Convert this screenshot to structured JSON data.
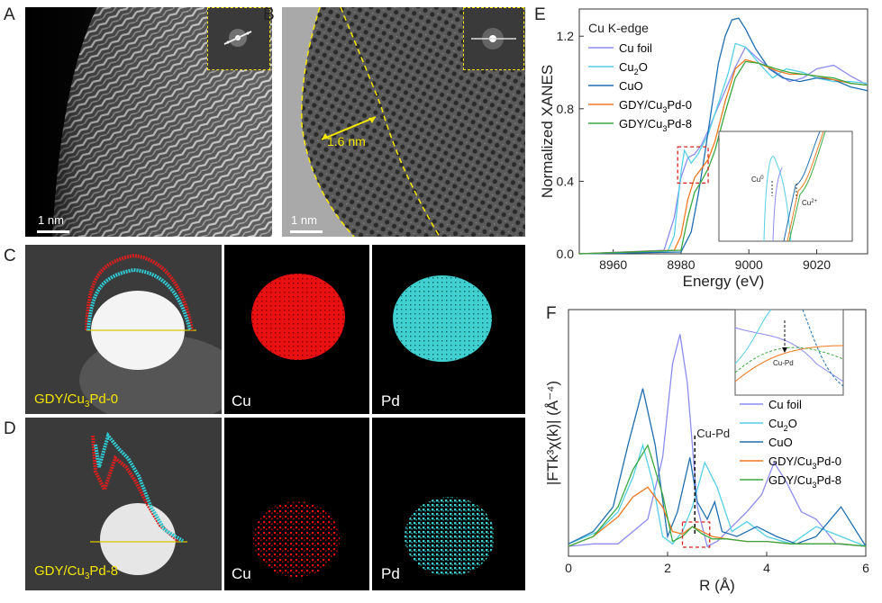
{
  "panels": {
    "A": {
      "letter": "A",
      "scale": "1 nm"
    },
    "B": {
      "letter": "B",
      "scale": "1 nm",
      "width_label": "1.6 nm"
    },
    "C": {
      "letter": "C",
      "sample": "GDY/Cu",
      "sub": "3",
      "suffix": "Pd-0",
      "cu": "Cu",
      "pd": "Pd"
    },
    "D": {
      "letter": "D",
      "sample": "GDY/Cu",
      "sub": "3",
      "suffix": "Pd-8",
      "cu": "Cu",
      "pd": "Pd"
    },
    "E": {
      "letter": "E"
    },
    "F": {
      "letter": "F"
    }
  },
  "chart_data": [
    {
      "type": "line",
      "panel": "E",
      "title": "Cu K-edge",
      "xlabel": "Energy (eV)",
      "ylabel": "Normalized XANES",
      "xlim": [
        8950,
        9035
      ],
      "ylim": [
        0,
        1.35
      ],
      "xticks": [
        "8960",
        "8980",
        "9000",
        "9020"
      ],
      "yticks": [
        "0.0",
        "0.4",
        "0.8",
        "1.2"
      ],
      "series": [
        {
          "name": "Cu foil",
          "color": "#8c8cf0",
          "x": [
            8950,
            8975,
            8978,
            8980,
            8982,
            8984,
            8986,
            8988,
            8990,
            8993,
            8996,
            8999,
            9003,
            9008,
            9012,
            9016,
            9020,
            9025,
            9030,
            9035
          ],
          "y": [
            0,
            0.02,
            0.2,
            0.42,
            0.53,
            0.55,
            0.6,
            0.68,
            0.77,
            0.9,
            1.03,
            1.14,
            1.07,
            1.0,
            0.95,
            0.97,
            1.02,
            1.04,
            0.98,
            0.93
          ]
        },
        {
          "name": "Cu2O",
          "color": "#55d0e6",
          "x": [
            8950,
            8976,
            8978,
            8980,
            8981,
            8983,
            8985,
            8988,
            8991,
            8994,
            8996,
            8999,
            9003,
            9007,
            9011,
            9016,
            9020,
            9025,
            9030,
            9035
          ],
          "y": [
            0,
            0.01,
            0.1,
            0.45,
            0.57,
            0.5,
            0.55,
            0.66,
            0.83,
            1.0,
            1.16,
            1.14,
            1.05,
            0.97,
            1.02,
            1.0,
            0.97,
            0.95,
            0.95,
            0.94
          ]
        },
        {
          "name": "CuO",
          "color": "#1f6fb0",
          "x": [
            8950,
            8980,
            8983,
            8985,
            8987,
            8989,
            8991,
            8993,
            8995,
            8997,
            8999,
            9002,
            9006,
            9010,
            9015,
            9020,
            9025,
            9030,
            9035
          ],
          "y": [
            0,
            0.01,
            0.12,
            0.32,
            0.55,
            0.8,
            1.05,
            1.2,
            1.29,
            1.3,
            1.24,
            1.13,
            1.02,
            0.97,
            0.95,
            0.97,
            0.96,
            0.92,
            0.9
          ]
        },
        {
          "name": "GDY/Cu3Pd-0",
          "color": "#f07820",
          "x": [
            8950,
            8978,
            8980,
            8982,
            8984,
            8986,
            8988,
            8990,
            8993,
            8996,
            8999,
            9003,
            9008,
            9012,
            9016,
            9020,
            9025,
            9030,
            9035
          ],
          "y": [
            0,
            0.02,
            0.1,
            0.3,
            0.42,
            0.47,
            0.52,
            0.62,
            0.84,
            1.02,
            1.07,
            1.05,
            1.01,
            0.99,
            0.99,
            0.98,
            0.96,
            0.94,
            0.93
          ]
        },
        {
          "name": "GDY/Cu3Pd-8",
          "color": "#3aa840",
          "x": [
            8950,
            8980,
            8982,
            8984,
            8986,
            8988,
            8990,
            8993,
            8996,
            8999,
            9003,
            9008,
            9012,
            9016,
            9020,
            9025,
            9030,
            9035
          ],
          "y": [
            0,
            0.02,
            0.2,
            0.34,
            0.4,
            0.47,
            0.57,
            0.78,
            0.97,
            1.06,
            1.05,
            1.02,
            1.0,
            0.99,
            0.98,
            0.97,
            0.94,
            0.93
          ]
        }
      ],
      "inset": {
        "labels": [
          "Cu",
          "0",
          "Cu",
          "2+"
        ]
      },
      "legend": "top-left"
    },
    {
      "type": "line",
      "panel": "F",
      "xlabel": "R (Å)",
      "ylabel": "|FTk³χ(k)| (Å⁻⁴)",
      "xlim": [
        0,
        6
      ],
      "xticks": [
        "0",
        "2",
        "4",
        "6"
      ],
      "annotation": "Cu-Pd",
      "inset": {
        "label": "Cu-Pd"
      },
      "series": [
        {
          "name": "Cu foil",
          "color": "#8c8cf0",
          "x": [
            0,
            0.5,
            1.0,
            1.3,
            1.6,
            1.9,
            2.1,
            2.25,
            2.4,
            2.6,
            2.8,
            3.0,
            3.3,
            3.6,
            3.9,
            4.15,
            4.4,
            4.7,
            5.0,
            5.4,
            6.0
          ],
          "y": [
            0.04,
            0.05,
            0.05,
            0.1,
            0.15,
            0.4,
            0.78,
            0.9,
            0.7,
            0.2,
            0.04,
            0.06,
            0.12,
            0.18,
            0.25,
            0.38,
            0.3,
            0.18,
            0.15,
            0.05,
            0.04
          ]
        },
        {
          "name": "Cu2O",
          "color": "#55d0e6",
          "x": [
            0,
            0.6,
            1.0,
            1.3,
            1.5,
            1.7,
            1.9,
            2.1,
            2.3,
            2.5,
            2.75,
            3.0,
            3.3,
            3.6,
            4.0,
            4.5,
            5.0,
            5.5,
            6.0
          ],
          "y": [
            0.05,
            0.1,
            0.18,
            0.32,
            0.45,
            0.3,
            0.08,
            0.05,
            0.1,
            0.2,
            0.38,
            0.28,
            0.1,
            0.14,
            0.08,
            0.05,
            0.12,
            0.08,
            0.04
          ]
        },
        {
          "name": "CuO",
          "color": "#1f6fb0",
          "x": [
            0,
            0.5,
            0.9,
            1.2,
            1.5,
            1.75,
            2.0,
            2.2,
            2.45,
            2.6,
            2.8,
            2.95,
            3.1,
            3.4,
            3.8,
            4.2,
            4.6,
            5.0,
            5.5,
            6.0
          ],
          "y": [
            0.05,
            0.1,
            0.2,
            0.45,
            0.68,
            0.45,
            0.08,
            0.18,
            0.4,
            0.22,
            0.15,
            0.22,
            0.1,
            0.08,
            0.12,
            0.08,
            0.05,
            0.08,
            0.2,
            0.04
          ]
        },
        {
          "name": "GDY/Cu3Pd-0",
          "color": "#f07820",
          "x": [
            0,
            0.5,
            1.0,
            1.3,
            1.6,
            1.9,
            2.1,
            2.3,
            2.5,
            2.7,
            2.9,
            3.2,
            3.6,
            4.0,
            4.5,
            5.0,
            5.5,
            6.0
          ],
          "y": [
            0.04,
            0.08,
            0.16,
            0.24,
            0.28,
            0.2,
            0.1,
            0.09,
            0.12,
            0.1,
            0.08,
            0.07,
            0.06,
            0.06,
            0.05,
            0.05,
            0.05,
            0.04
          ]
        },
        {
          "name": "GDY/Cu3Pd-8",
          "color": "#3aa840",
          "x": [
            0,
            0.5,
            1.0,
            1.3,
            1.6,
            1.9,
            2.1,
            2.3,
            2.5,
            2.7,
            2.9,
            3.2,
            3.6,
            4.0,
            4.5,
            5.0,
            5.5,
            6.0
          ],
          "y": [
            0.04,
            0.08,
            0.2,
            0.35,
            0.45,
            0.25,
            0.06,
            0.08,
            0.12,
            0.09,
            0.07,
            0.07,
            0.06,
            0.06,
            0.05,
            0.05,
            0.05,
            0.04
          ]
        }
      ],
      "legend": "right"
    }
  ]
}
